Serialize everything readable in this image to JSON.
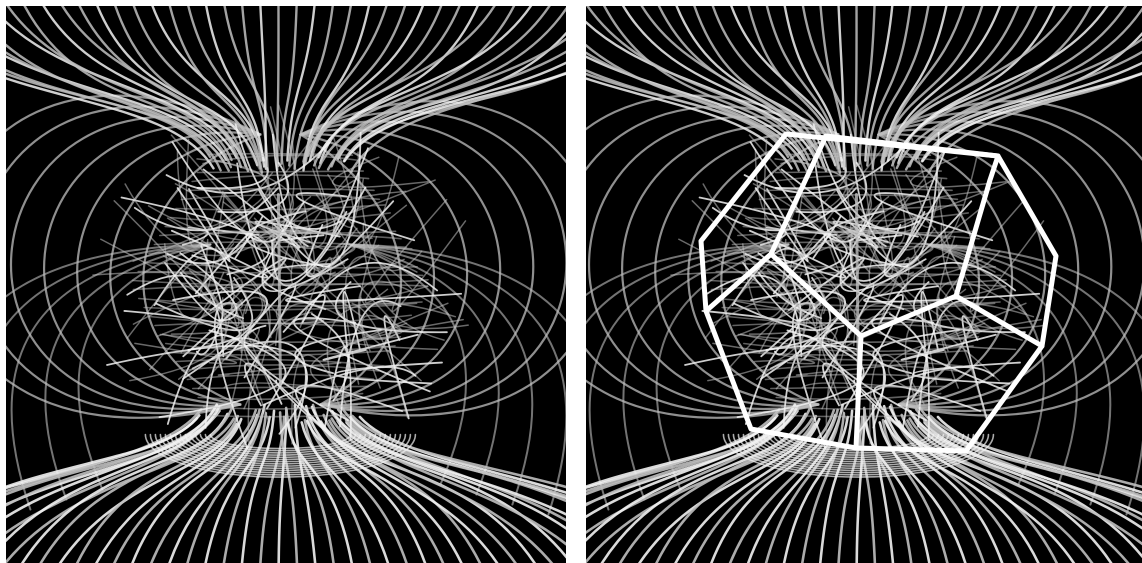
{
  "figure": {
    "panels": [
      {
        "id": "left",
        "content": "magnetic-field-lines",
        "overlay": "none"
      },
      {
        "id": "right",
        "content": "magnetic-field-lines",
        "overlay": "dodecahedron-wireframe"
      }
    ],
    "colors": {
      "background": "#000000",
      "field_lines": "#bfbfbf",
      "field_lines_bright": "#f2f2f2",
      "wireframe": "#ffffff",
      "separator": "#ffffff"
    }
  }
}
